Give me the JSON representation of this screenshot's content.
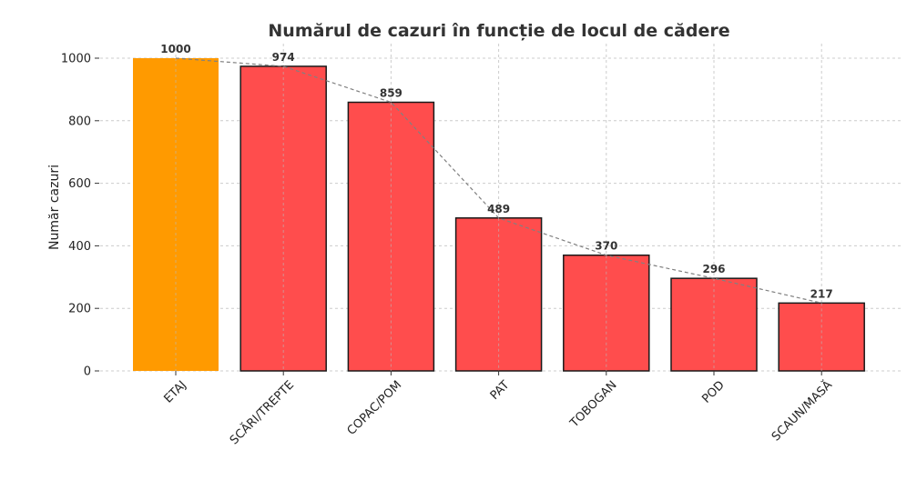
{
  "chart_data": {
    "type": "bar",
    "title": "Numărul de cazuri în funcție de locul de cădere",
    "xlabel": "",
    "ylabel": "Număr cazuri",
    "categories": [
      "ETAJ",
      "SCĂRI/TREPTE",
      "COPAC/POM",
      "PAT",
      "TOBOGAN",
      "POD",
      "SCAUN/MASĂ"
    ],
    "values": [
      1000,
      974,
      859,
      489,
      370,
      296,
      217
    ],
    "ylim": [
      0,
      1050
    ],
    "yticks": [
      0,
      200,
      400,
      600,
      800,
      1000
    ],
    "grid": true,
    "trend_line": true,
    "colors": {
      "highlight": "#ff9a00",
      "bar": "#ff4d4d",
      "edge": "#1a1a1a",
      "trend": "#808080"
    }
  }
}
